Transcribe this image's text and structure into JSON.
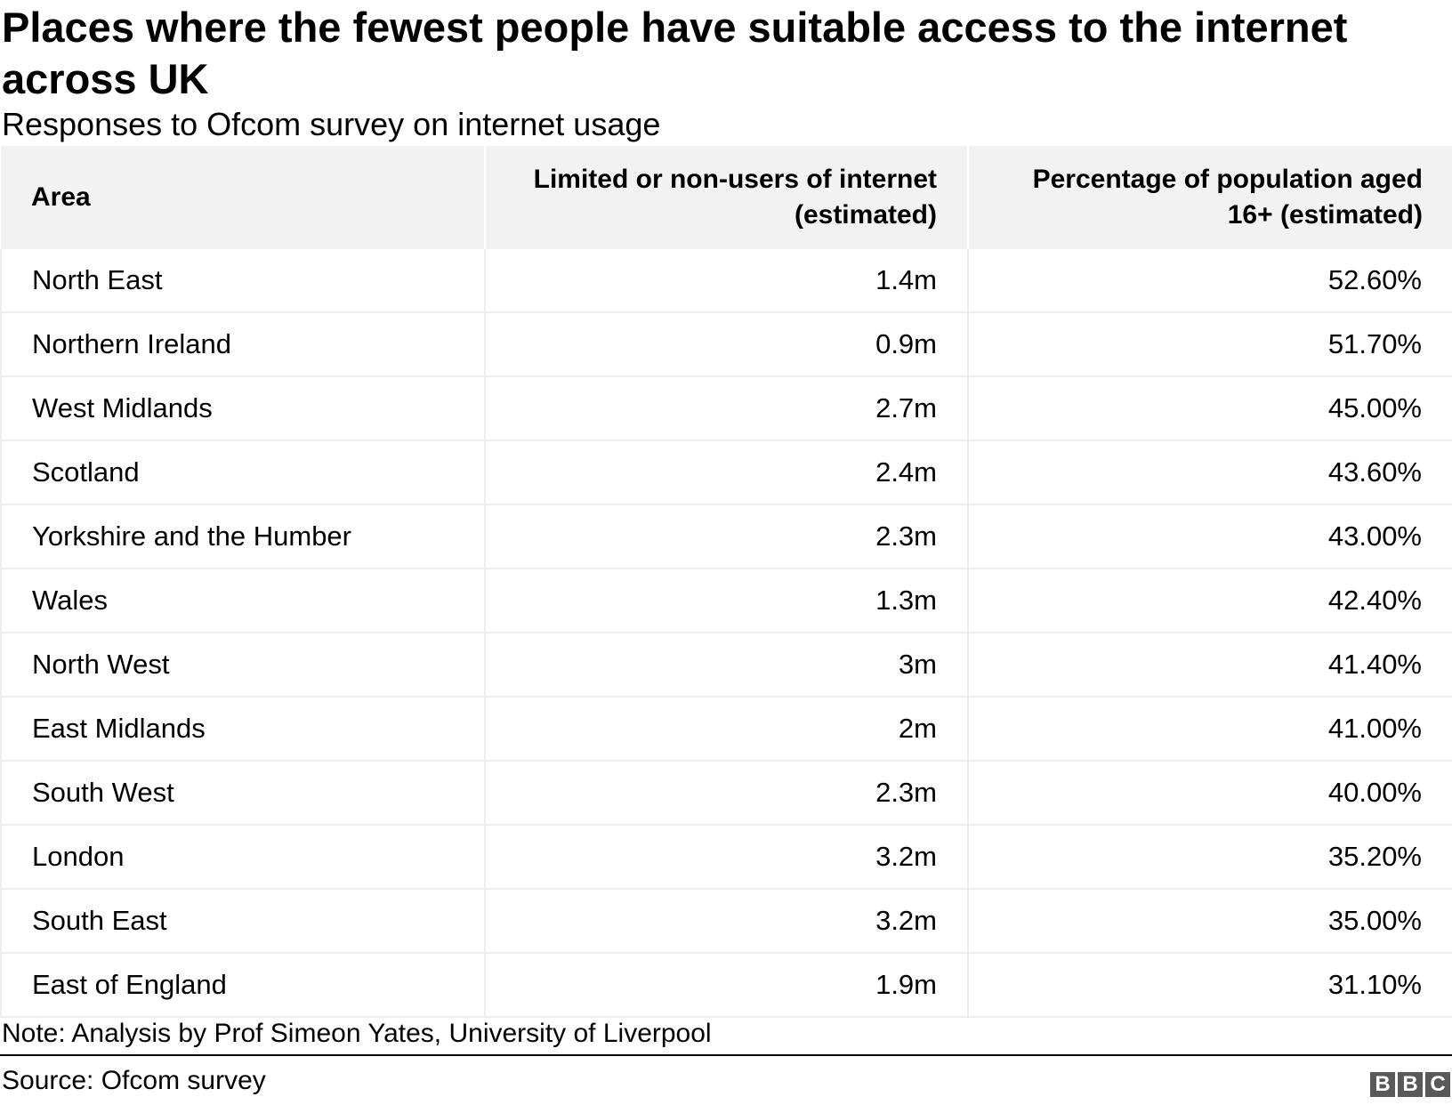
{
  "chart_data": {
    "type": "table",
    "title": "Places where the fewest people have suitable access to the internet across UK",
    "subtitle": "Responses to Ofcom survey on internet usage",
    "columns": [
      "Area",
      "Limited or non-users of internet (estimated)",
      "Percentage of population aged 16+ (estimated)"
    ],
    "rows": [
      [
        "North East",
        "1.4m",
        "52.60%"
      ],
      [
        "Northern Ireland",
        "0.9m",
        "51.70%"
      ],
      [
        "West Midlands",
        "2.7m",
        "45.00%"
      ],
      [
        "Scotland",
        "2.4m",
        "43.60%"
      ],
      [
        "Yorkshire and the Humber",
        "2.3m",
        "43.00%"
      ],
      [
        "Wales",
        "1.3m",
        "42.40%"
      ],
      [
        "North West",
        "3m",
        "41.40%"
      ],
      [
        "East Midlands",
        "2m",
        "41.00%"
      ],
      [
        "South West",
        "2.3m",
        "40.00%"
      ],
      [
        "London",
        "3.2m",
        "35.20%"
      ],
      [
        "South East",
        "3.2m",
        "35.00%"
      ],
      [
        "East of England",
        "1.9m",
        "31.10%"
      ]
    ],
    "note": "Note: Analysis by Prof Simeon Yates, University of Liverpool",
    "source": "Source: Ofcom survey"
  },
  "logo": {
    "letters": [
      "B",
      "B",
      "C"
    ]
  },
  "colors": {
    "header_bg": "#f2f2f2",
    "grid": "#ededed",
    "logo_bg": "#595959"
  }
}
